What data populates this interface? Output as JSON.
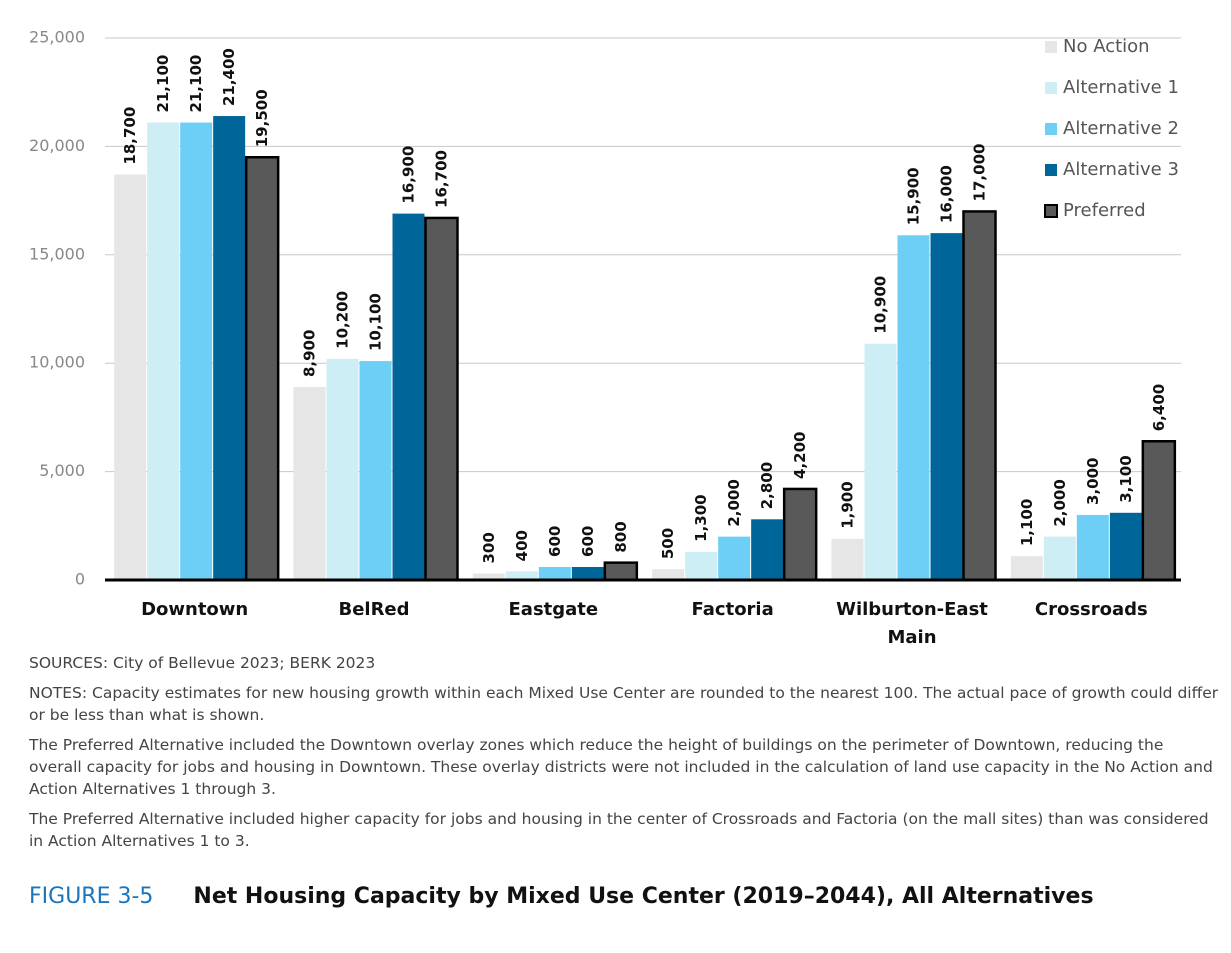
{
  "chart_data": {
    "type": "bar",
    "title": "Net Housing Capacity by Mixed Use Center (2019–2044), All Alternatives",
    "figure_label": "FIGURE 3-5",
    "sources": "SOURCES:   City of Bellevue 2023; BERK 2023",
    "notes": [
      "NOTES: Capacity estimates for new housing growth within each Mixed Use Center are rounded to the nearest 100. The actual pace of growth could differ or be less than what is shown.",
      "The Preferred Alternative included the Downtown overlay zones which reduce the height of buildings on the perimeter of Downtown, reducing the overall capacity for jobs and housing in Downtown. These overlay districts were not included in the calculation of land use capacity in the No Action and Action Alternatives 1 through 3.",
      "The Preferred Alternative included higher capacity for jobs and housing in the center of Crossroads and Factoria (on the mall sites) than was considered in Action Alternatives 1 to 3."
    ],
    "categories": [
      "Downtown",
      "BelRed",
      "Eastgate",
      "Factoria",
      "Wilburton-East Main",
      "Crossroads"
    ],
    "series": [
      {
        "name": "No Action",
        "color": "#e6e6e6",
        "values": [
          18700,
          8900,
          300,
          500,
          1900,
          1100
        ],
        "value_labels": [
          "18,700",
          "8,900",
          "300",
          "500",
          "1,900",
          "1,100"
        ]
      },
      {
        "name": "Alternative 1",
        "color": "#cdeef4",
        "values": [
          21100,
          10200,
          400,
          1300,
          10900,
          2000
        ],
        "value_labels": [
          "21,100",
          "10,200",
          "400",
          "1,300",
          "10,900",
          "2,000"
        ]
      },
      {
        "name": "Alternative 2",
        "color": "#6dcff6",
        "values": [
          21100,
          10100,
          600,
          2000,
          15900,
          3000
        ],
        "value_labels": [
          "21,100",
          "10,100",
          "600",
          "2,000",
          "15,900",
          "3,000"
        ]
      },
      {
        "name": "Alternative 3",
        "color": "#006699",
        "values": [
          21400,
          16900,
          600,
          2800,
          16000,
          3100
        ],
        "value_labels": [
          "21,400",
          "16,900",
          "600",
          "2,800",
          "16,000",
          "3,100"
        ]
      },
      {
        "name": "Preferred",
        "color": "#595959",
        "outline": "#000000",
        "values": [
          19500,
          16700,
          800,
          4200,
          17000,
          6400
        ],
        "value_labels": [
          "19,500",
          "16,700",
          "800",
          "4,200",
          "17,000",
          "6,400"
        ]
      }
    ],
    "ylim": [
      0,
      25000
    ],
    "yticks": [
      0,
      {
        "value": 5000,
        "label": "5,000"
      },
      {
        "value": 10000,
        "label": "10,000"
      },
      {
        "value": 15000,
        "label": "15,000"
      },
      {
        "value": 20000,
        "label": "20,000"
      },
      {
        "value": 25000,
        "label": "25,000"
      }
    ],
    "grid": true,
    "legend": "top-right"
  }
}
